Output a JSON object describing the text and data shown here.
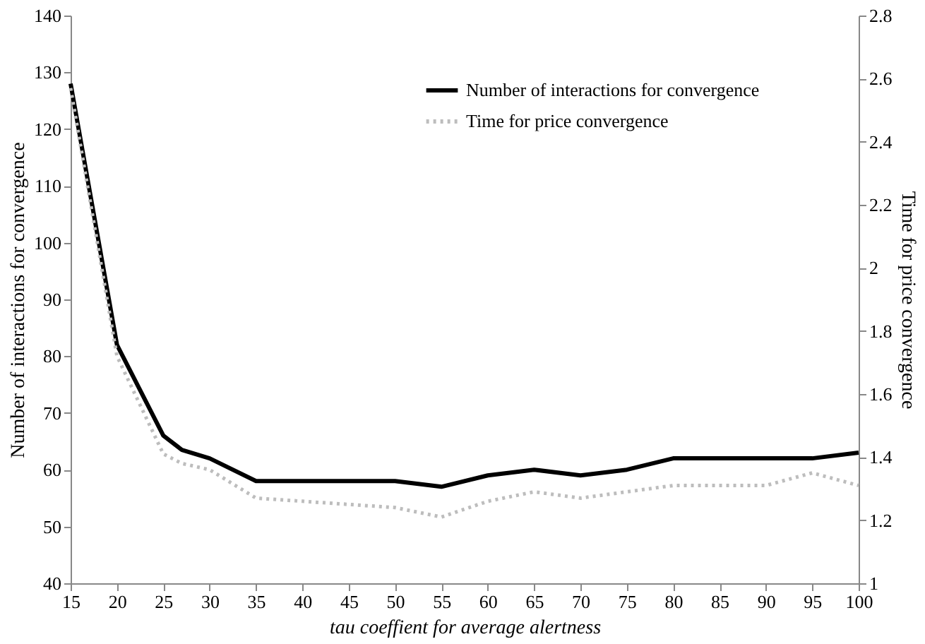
{
  "chart_data": {
    "type": "line",
    "xlabel": "tau coeffient for average alertness",
    "ylabel": "Number of interactions for convergence",
    "y2label": "Time for price convergence",
    "x": [
      15,
      20,
      25,
      27,
      30,
      35,
      40,
      45,
      50,
      55,
      60,
      65,
      70,
      75,
      80,
      85,
      90,
      95,
      100
    ],
    "series": [
      {
        "name": "Number of interactions for convergence",
        "color": "#000000",
        "line_style": "solid",
        "values": [
          128,
          82,
          66,
          63.5,
          62,
          58,
          58,
          58,
          58,
          57,
          59,
          60,
          59,
          60,
          62,
          62,
          62,
          62,
          63
        ]
      },
      {
        "name": "Time for price convergence",
        "color": "#bdbdbd",
        "line_style": "dotted",
        "axis": "y2",
        "values": [
          2.57,
          1.72,
          1.41,
          1.38,
          1.36,
          1.27,
          1.26,
          1.25,
          1.24,
          1.21,
          1.26,
          1.29,
          1.27,
          1.29,
          1.31,
          1.31,
          1.31,
          1.35,
          1.31
        ]
      }
    ],
    "xlim": [
      15,
      100
    ],
    "xticks": [
      15,
      20,
      25,
      30,
      35,
      40,
      45,
      50,
      55,
      60,
      65,
      70,
      75,
      80,
      85,
      90,
      95,
      100
    ],
    "ylim": [
      40,
      140
    ],
    "yticks": [
      40,
      50,
      60,
      70,
      80,
      90,
      100,
      110,
      120,
      130,
      140
    ],
    "y2lim": [
      1,
      2.8
    ],
    "y2ticks": [
      1,
      1.2,
      1.4,
      1.6,
      1.8,
      2,
      2.2,
      2.4,
      2.6,
      2.8
    ],
    "grid": false,
    "legend": "top right",
    "marker": "none"
  }
}
